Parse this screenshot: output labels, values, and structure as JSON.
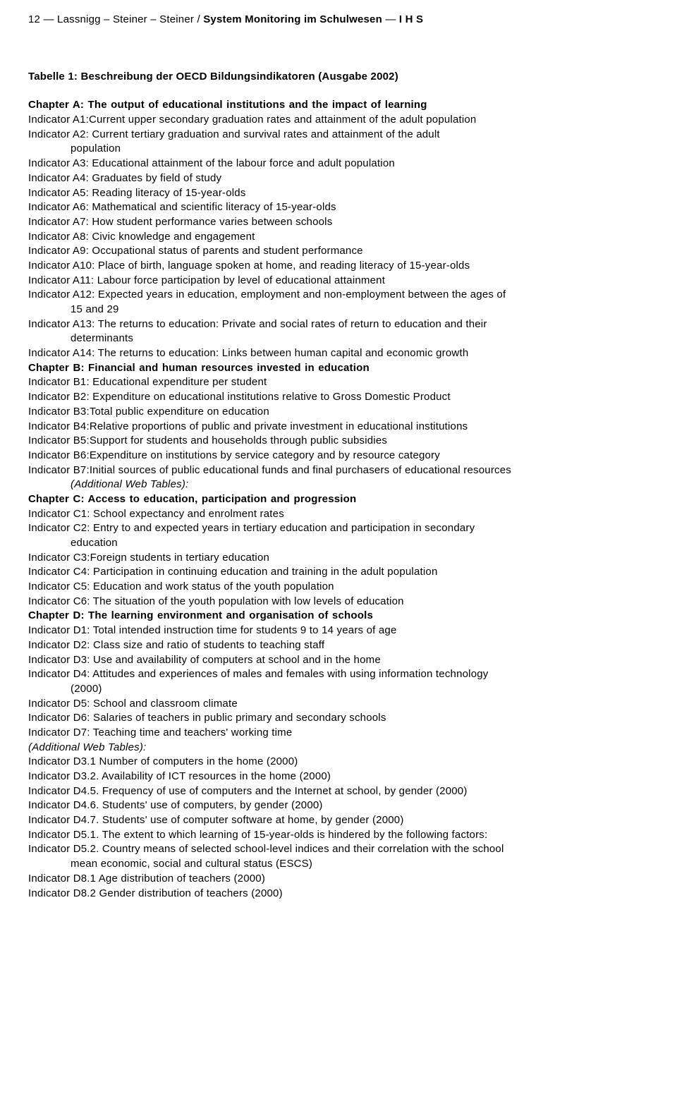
{
  "header": {
    "page_num": "12",
    "dash": " — ",
    "authors": "Lassnigg – Steiner – Steiner",
    "slash": " / ",
    "title": "System Monitoring im Schulwesen",
    "org": "I H S"
  },
  "table_title": "Tabelle 1: Beschreibung der OECD Bildungsindikatoren (Ausgabe 2002)",
  "body": [
    {
      "cls": "chapter",
      "t": "Chapter A: The output of educational institutions and the impact of learning"
    },
    {
      "cls": "line",
      "t": "Indicator A1:Current upper secondary graduation rates and attainment of the adult population"
    },
    {
      "cls": "line justify",
      "t": "Indicator A2: Current tertiary graduation and survival rates and attainment of the adult"
    },
    {
      "cls": "line indent",
      "t": "population"
    },
    {
      "cls": "line",
      "t": "Indicator A3: Educational attainment of the labour force and adult population"
    },
    {
      "cls": "line",
      "t": "Indicator A4: Graduates by field of study"
    },
    {
      "cls": "line",
      "t": "Indicator A5: Reading literacy of 15-year-olds"
    },
    {
      "cls": "line",
      "t": "Indicator A6: Mathematical and scientific literacy of 15-year-olds"
    },
    {
      "cls": "line",
      "t": "Indicator A7: How student performance varies between schools"
    },
    {
      "cls": "line",
      "t": "Indicator A8: Civic knowledge and engagement"
    },
    {
      "cls": "line",
      "t": "Indicator A9: Occupational status of parents and student performance"
    },
    {
      "cls": "line",
      "t": "Indicator A10: Place of birth, language spoken at home, and reading literacy of 15-year-olds"
    },
    {
      "cls": "line",
      "t": "Indicator A11: Labour force participation by level of educational attainment"
    },
    {
      "cls": "line justify",
      "t": "Indicator A12: Expected years in education, employment and non-employment between the ages of"
    },
    {
      "cls": "line indent",
      "t": "15 and 29"
    },
    {
      "cls": "line justify",
      "t": "Indicator A13: The returns to education: Private and social rates of return to education and their"
    },
    {
      "cls": "line indent",
      "t": "determinants"
    },
    {
      "cls": "line",
      "t": "Indicator A14: The returns to education: Links between human capital and economic growth"
    },
    {
      "cls": "chapter",
      "t": "Chapter B: Financial and human resources invested in education"
    },
    {
      "cls": "line",
      "t": "Indicator B1: Educational expenditure per student"
    },
    {
      "cls": "line",
      "t": "Indicator B2: Expenditure on educational institutions relative to Gross Domestic Product"
    },
    {
      "cls": "line",
      "t": "Indicator B3:Total public expenditure on education"
    },
    {
      "cls": "line",
      "t": "Indicator B4:Relative proportions of public and private investment in educational institutions"
    },
    {
      "cls": "line",
      "t": "Indicator B5:Support for students and households through public subsidies"
    },
    {
      "cls": "line",
      "t": "Indicator B6:Expenditure on institutions by service category and by resource category"
    },
    {
      "cls": "line justify",
      "t": "Indicator B7:Initial sources of public educational funds and final purchasers of educational resources"
    },
    {
      "cls": "line italic indent",
      "t": "(Additional Web Tables):"
    },
    {
      "cls": "chapter",
      "t": "Chapter C: Access to education, participation and progression"
    },
    {
      "cls": "line",
      "t": "Indicator C1: School expectancy and enrolment rates"
    },
    {
      "cls": "line justify",
      "t": "Indicator C2: Entry to and expected years in tertiary education and participation in secondary"
    },
    {
      "cls": "line indent",
      "t": "education"
    },
    {
      "cls": "line",
      "t": "Indicator C3:Foreign students in tertiary education"
    },
    {
      "cls": "line",
      "t": "Indicator C4: Participation in continuing education and training in the adult population"
    },
    {
      "cls": "line",
      "t": "Indicator C5: Education and work status of the youth population"
    },
    {
      "cls": "line",
      "t": "Indicator C6: The situation of the youth population with low levels of education"
    },
    {
      "cls": "chapter",
      "t": "Chapter D: The learning environment and organisation of schools"
    },
    {
      "cls": "line",
      "t": "Indicator D1: Total intended instruction time for students 9 to 14 years of age"
    },
    {
      "cls": "line",
      "t": "Indicator D2: Class size and ratio of students to teaching staff"
    },
    {
      "cls": "line",
      "t": "Indicator D3: Use and availability of computers at school and in the home"
    },
    {
      "cls": "line justify",
      "t": "Indicator D4: Attitudes and experiences of males and females with using information technology"
    },
    {
      "cls": "line indent",
      "t": "(2000)"
    },
    {
      "cls": "line",
      "t": "Indicator D5: School and classroom climate"
    },
    {
      "cls": "line",
      "t": "Indicator D6: Salaries of teachers in public primary and secondary schools"
    },
    {
      "cls": "line",
      "t": "Indicator D7: Teaching time and teachers' working time"
    },
    {
      "cls": "line italic",
      "t": "(Additional Web Tables):"
    },
    {
      "cls": "line",
      "t": "Indicator D3.1 Number of computers in the home (2000)"
    },
    {
      "cls": "line",
      "t": "Indicator D3.2. Availability of ICT resources in the home (2000)"
    },
    {
      "cls": "line",
      "t": "Indicator D4.5. Frequency of use of computers and the Internet at school, by gender (2000)"
    },
    {
      "cls": "line",
      "t": "Indicator D4.6. Students' use of computers, by gender (2000)"
    },
    {
      "cls": "line",
      "t": "Indicator D4.7. Students' use of computer software at home, by gender (2000)"
    },
    {
      "cls": "line",
      "t": "Indicator D5.1. The extent to which learning of 15-year-olds is hindered by the following factors:"
    },
    {
      "cls": "line justify",
      "t": "Indicator D5.2. Country means of selected school-level indices and their correlation with the school"
    },
    {
      "cls": "line indent",
      "t": "mean economic, social and cultural status (ESCS)"
    },
    {
      "cls": "line",
      "t": "Indicator D8.1 Age distribution of teachers (2000)"
    },
    {
      "cls": "line",
      "t": "Indicator D8.2 Gender distribution of teachers (2000)"
    }
  ]
}
